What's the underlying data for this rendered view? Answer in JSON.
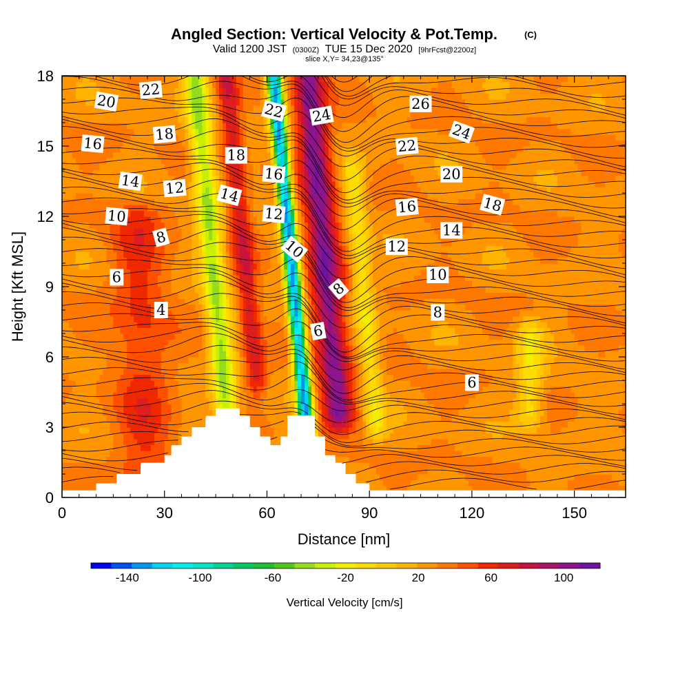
{
  "title": {
    "main": "Angled Section: Vertical Velocity & Pot.Temp.",
    "units": "(C)",
    "valid_prefix": "Valid 1200 JST",
    "valid_z": "(0300Z)",
    "valid_date": "TUE 15 Dec 2020",
    "forecast": "[9hrFcst@2200z]",
    "slice": "slice X,Y= 34,23@135°"
  },
  "colorbar": {
    "label": "Vertical Velocity [cm/s]",
    "ticks": [
      "-140",
      "-100",
      "-60",
      "-20",
      "20",
      "60",
      "100"
    ],
    "colors": [
      "#0000f0",
      "#0050f0",
      "#0096f0",
      "#00d2f0",
      "#00f0f0",
      "#00e6c8",
      "#00d296",
      "#00c864",
      "#1ebe32",
      "#50c81e",
      "#96dc1e",
      "#c8f000",
      "#f0f000",
      "#ffdc00",
      "#ffc800",
      "#ffb400",
      "#ff9600",
      "#ff7800",
      "#ff5000",
      "#f02800",
      "#dc1e1e",
      "#c8143c",
      "#aa1464",
      "#8c148c",
      "#6e14a0"
    ]
  },
  "chart_data": {
    "type": "heatmap",
    "title": "Angled Section: Vertical Velocity & Pot.Temp.",
    "xlabel": "Distance [nm]",
    "ylabel": "Height [Kft MSL]",
    "xlim": [
      0,
      165
    ],
    "ylim": [
      0,
      18
    ],
    "xticks": [
      0,
      30,
      60,
      90,
      120,
      150
    ],
    "yticks": [
      0,
      3,
      6,
      9,
      12,
      15,
      18
    ],
    "colorbar_range": [
      -160,
      120
    ],
    "colorbar_step": 10,
    "terrain": [
      [
        0,
        0.3
      ],
      [
        10,
        0.6
      ],
      [
        16,
        1.0
      ],
      [
        23,
        1.4
      ],
      [
        30,
        1.8
      ],
      [
        32,
        2.2
      ],
      [
        35,
        2.6
      ],
      [
        38,
        3.0
      ],
      [
        42,
        3.4
      ],
      [
        45,
        3.8
      ],
      [
        50,
        3.8
      ],
      [
        52,
        3.4
      ],
      [
        55,
        3.0
      ],
      [
        58,
        2.6
      ],
      [
        61,
        2.2
      ],
      [
        64,
        2.6
      ],
      [
        66,
        3.5
      ],
      [
        72,
        3.5
      ],
      [
        74,
        2.6
      ],
      [
        77,
        1.8
      ],
      [
        80,
        1.4
      ],
      [
        83,
        1.0
      ],
      [
        86,
        0.6
      ],
      [
        90,
        0.3
      ],
      [
        165,
        0.3
      ]
    ],
    "velocity_features": [
      {
        "kind": "downdraft",
        "x0": 72,
        "x1": 62,
        "ymin": 2.5,
        "ymax": 18,
        "w": 2.2,
        "amp": -140
      },
      {
        "kind": "updraft",
        "x0": 81,
        "x1": 72,
        "ymin": 3.5,
        "ymax": 18,
        "w": 4.5,
        "amp": 70
      },
      {
        "kind": "downdraft",
        "x0": 49,
        "x1": 39,
        "ymin": 2.5,
        "ymax": 18,
        "w": 3.5,
        "amp": -60
      },
      {
        "kind": "downdraft",
        "x0": 92,
        "x1": 85,
        "ymin": 3.0,
        "ymax": 14,
        "w": 3.0,
        "amp": -35
      },
      {
        "kind": "updraft",
        "x0": 57,
        "x1": 48,
        "ymin": 5.0,
        "ymax": 18,
        "w": 3.0,
        "amp": 40
      },
      {
        "kind": "updraft",
        "x0": 25,
        "x1": 22,
        "ymin": 0,
        "ymax": 12,
        "w": 8.0,
        "amp": 25
      },
      {
        "kind": "downdraft",
        "x0": 137,
        "x1": 137,
        "ymin": 3.5,
        "ymax": 7,
        "w": 4.0,
        "amp": -35
      }
    ],
    "theta_labels": [
      {
        "text": "22",
        "x": 26,
        "y": 17.4,
        "rot": -5
      },
      {
        "text": "20",
        "x": 13,
        "y": 16.9,
        "rot": 10
      },
      {
        "text": "18",
        "x": 30,
        "y": 15.5,
        "rot": -5
      },
      {
        "text": "16",
        "x": 9,
        "y": 15.1,
        "rot": 5
      },
      {
        "text": "14",
        "x": 20,
        "y": 13.5,
        "rot": 8
      },
      {
        "text": "12",
        "x": 33,
        "y": 13.2,
        "rot": -5
      },
      {
        "text": "10",
        "x": 16,
        "y": 12.0,
        "rot": 5
      },
      {
        "text": "8",
        "x": 29,
        "y": 11.1,
        "rot": -15
      },
      {
        "text": "6",
        "x": 16,
        "y": 9.4,
        "rot": 0
      },
      {
        "text": "4",
        "x": 29,
        "y": 8.0,
        "rot": 0
      },
      {
        "text": "22",
        "x": 62,
        "y": 16.5,
        "rot": 15
      },
      {
        "text": "18",
        "x": 51,
        "y": 14.6,
        "rot": 0
      },
      {
        "text": "16",
        "x": 62,
        "y": 13.8,
        "rot": 5
      },
      {
        "text": "14",
        "x": 49,
        "y": 12.9,
        "rot": 15
      },
      {
        "text": "12",
        "x": 62,
        "y": 12.1,
        "rot": 5
      },
      {
        "text": "10",
        "x": 68,
        "y": 10.6,
        "rot": 40
      },
      {
        "text": "24",
        "x": 76,
        "y": 16.3,
        "rot": -10
      },
      {
        "text": "8",
        "x": 81,
        "y": 8.9,
        "rot": -40
      },
      {
        "text": "6",
        "x": 75,
        "y": 7.1,
        "rot": -10
      },
      {
        "text": "26",
        "x": 105,
        "y": 16.8,
        "rot": 0
      },
      {
        "text": "24",
        "x": 117,
        "y": 15.6,
        "rot": 20
      },
      {
        "text": "22",
        "x": 101,
        "y": 15.0,
        "rot": -5
      },
      {
        "text": "20",
        "x": 114,
        "y": 13.8,
        "rot": 0
      },
      {
        "text": "18",
        "x": 126,
        "y": 12.5,
        "rot": 15
      },
      {
        "text": "16",
        "x": 101,
        "y": 12.4,
        "rot": -5
      },
      {
        "text": "14",
        "x": 114,
        "y": 11.4,
        "rot": 0
      },
      {
        "text": "12",
        "x": 98,
        "y": 10.7,
        "rot": 0
      },
      {
        "text": "10",
        "x": 110,
        "y": 9.5,
        "rot": 0
      },
      {
        "text": "8",
        "x": 110,
        "y": 7.9,
        "rot": 0
      },
      {
        "text": "6",
        "x": 120,
        "y": 4.9,
        "rot": 0
      }
    ],
    "contour_levels": [
      4,
      6,
      8,
      10,
      12,
      14,
      16,
      18,
      20,
      22,
      24,
      26
    ]
  }
}
